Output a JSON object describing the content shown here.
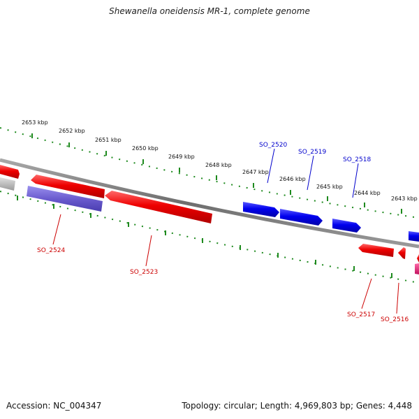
{
  "title": "Shewanella oneidensis MR-1, complete genome",
  "footer": {
    "accession": "Accession: NC_004347",
    "summary": "Topology: circular; Length: 4,969,803 bp; Genes: 4,448"
  },
  "colors": {
    "backbone": "#7a7a7a",
    "tick": "#1e8a1e",
    "forward_gene": "#0000ee",
    "reverse_gene": "#ee0000",
    "forward_label": "#0000cc",
    "reverse_label": "#cc0000",
    "other_reverse": "#6b5ccf",
    "grey_gene": "#b8b8b8",
    "magenta_gene": "#e0207a"
  },
  "scale": {
    "unit": "kbp",
    "labels": [
      "2653 kbp",
      "2652 kbp",
      "2651 kbp",
      "2650 kbp",
      "2649 kbp",
      "2648 kbp",
      "2647 kbp",
      "2646 kbp",
      "2645 kbp",
      "2644 kbp",
      "2643 kbp"
    ]
  },
  "genes": {
    "forward": [
      {
        "name": "SO_2520",
        "strand": "+"
      },
      {
        "name": "SO_2519",
        "strand": "+"
      },
      {
        "name": "SO_2518",
        "strand": "+"
      }
    ],
    "reverse": [
      {
        "name": "SO_2524",
        "strand": "-"
      },
      {
        "name": "SO_2523",
        "strand": "-"
      },
      {
        "name": "SO_2517",
        "strand": "-"
      },
      {
        "name": "SO_2516",
        "strand": "-"
      }
    ]
  }
}
